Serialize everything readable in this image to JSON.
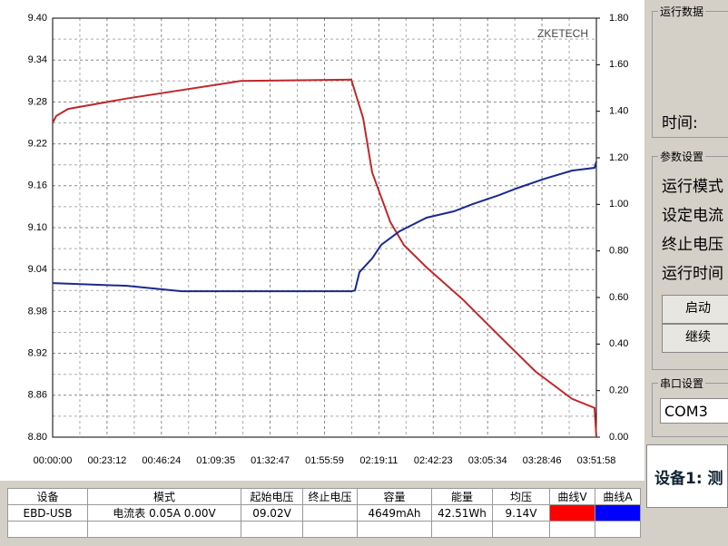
{
  "chart_data": {
    "type": "line",
    "watermark": "ZKETECH",
    "xlim": [
      0,
      13918
    ],
    "xticks": [
      {
        "value": 0,
        "label": "00:00:00"
      },
      {
        "value": 1392,
        "label": "00:23:12"
      },
      {
        "value": 2784,
        "label": "00:46:24"
      },
      {
        "value": 4175,
        "label": "01:09:35"
      },
      {
        "value": 5567,
        "label": "01:32:47"
      },
      {
        "value": 6959,
        "label": "01:55:59"
      },
      {
        "value": 8351,
        "label": "02:19:11"
      },
      {
        "value": 9742,
        "label": "02:42:23"
      },
      {
        "value": 11134,
        "label": "03:05:34"
      },
      {
        "value": 12526,
        "label": "03:28:46"
      },
      {
        "value": 13918,
        "label": "03:51:58"
      }
    ],
    "ylim": [
      8.8,
      9.4
    ],
    "yticks": [
      {
        "value": 8.8,
        "label": "8.80"
      },
      8.86,
      8.92,
      8.98,
      9.04,
      {
        "value": 9.1,
        "label": "9.10"
      },
      9.16,
      9.22,
      9.28,
      9.34,
      {
        "value": 9.4,
        "label": "9.40"
      }
    ],
    "y2lim": [
      0,
      1.8
    ],
    "y2ticks": [
      {
        "value": 0,
        "label": "0.00"
      },
      {
        "value": 0.2,
        "label": "0.20"
      },
      {
        "value": 0.4,
        "label": "0.40"
      },
      {
        "value": 0.6,
        "label": "0.60"
      },
      {
        "value": 0.8,
        "label": "0.80"
      },
      {
        "value": 1,
        "label": "1.00"
      },
      {
        "value": 1.2,
        "label": "1.20"
      },
      {
        "value": 1.4,
        "label": "1.40"
      },
      {
        "value": 1.6,
        "label": "1.60"
      },
      {
        "value": 1.8,
        "label": "1.80"
      }
    ],
    "grid": true,
    "series": [
      {
        "color": "#c0282a",
        "x": [
          0,
          93,
          395,
          1905,
          4810,
          7644,
          7947,
          8179,
          8644,
          8992,
          9573,
          10502,
          11432,
          12361,
          13291,
          13871,
          13918
        ],
        "values": [
          9.25,
          9.26,
          9.27,
          9.285,
          9.31,
          9.312,
          9.257,
          9.179,
          9.108,
          9.075,
          9.043,
          8.997,
          8.945,
          8.894,
          8.855,
          8.842,
          8.8
        ]
      },
      {
        "color": "#1a2a8c",
        "axis": "y2",
        "x": [
          0,
          1905,
          3299,
          7644,
          7738,
          7854,
          8179,
          8411,
          8876,
          9573,
          10270,
          10734,
          11432,
          11897,
          12594,
          13291,
          13871,
          13918
        ],
        "values": [
          0.662,
          0.65,
          0.627,
          0.627,
          0.63,
          0.709,
          0.768,
          0.826,
          0.884,
          0.943,
          0.97,
          1.0,
          1.04,
          1.07,
          1.11,
          1.145,
          1.157,
          1.184
        ]
      }
    ]
  },
  "panel": {
    "run_data": "运行数据",
    "time_label": "时间:",
    "params": "参数设置",
    "param_items": [
      "运行模式",
      "设定电流",
      "终止电压",
      "运行时间"
    ],
    "start": "启动",
    "continue": "继续",
    "serial": "串口设置",
    "port": "COM3",
    "device": "设备1: 测"
  },
  "table": {
    "header": [
      "设备",
      "模式",
      "起始电压",
      "终止电压",
      "容量",
      "能量",
      "均压",
      "曲线V",
      "曲线A"
    ],
    "row": [
      "EBD-USB",
      "电流表 0.05A 0.00V",
      "09.02V",
      "",
      "4649mAh",
      "42.51Wh",
      "9.14V"
    ]
  }
}
